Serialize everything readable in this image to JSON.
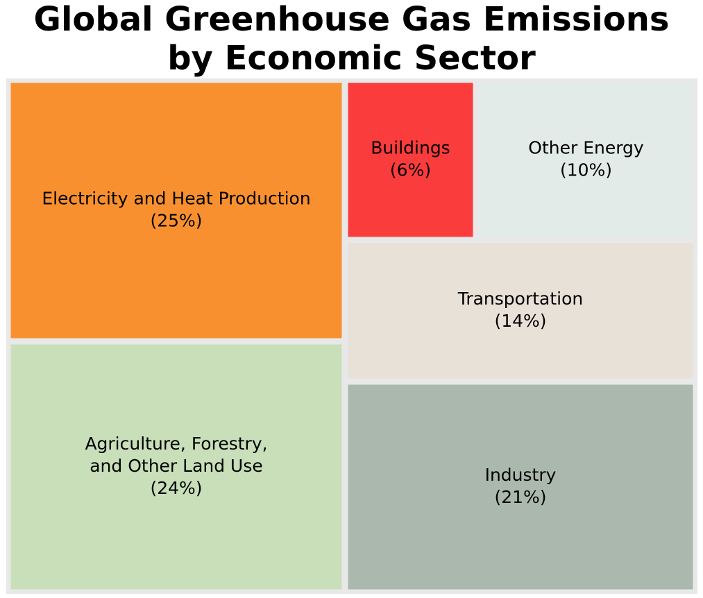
{
  "title_lines": [
    "Global Greenhouse Gas Emissions",
    "by Economic Sector"
  ],
  "chart_data": {
    "type": "treemap",
    "title": "Global Greenhouse Gas Emissions by Economic Sector",
    "unit": "%",
    "border_color": "#e8e8e8",
    "items": [
      {
        "label": "Electricity and Heat Production",
        "value": 25,
        "pct_label": "(25%)",
        "color": "#f99030"
      },
      {
        "label": "Agriculture, Forestry, and Other Land Use",
        "value": 24,
        "pct_label": "(24%)",
        "color": "#c8dfba"
      },
      {
        "label": "Industry",
        "value": 21,
        "pct_label": "(21%)",
        "color": "#abb8ae"
      },
      {
        "label": "Transportation",
        "value": 14,
        "pct_label": "(14%)",
        "color": "#e8e1d7"
      },
      {
        "label": "Other Energy",
        "value": 10,
        "pct_label": "(10%)",
        "color": "#e2ebe7"
      },
      {
        "label": "Buildings",
        "value": 6,
        "pct_label": "(6%)",
        "color": "#fb3c3c"
      }
    ]
  }
}
